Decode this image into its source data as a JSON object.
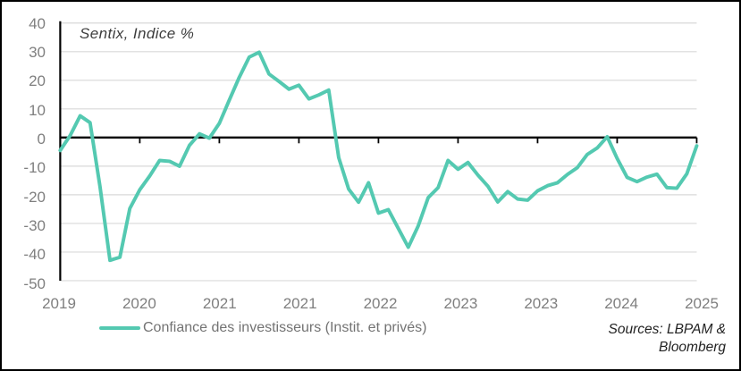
{
  "chart_data": {
    "type": "line",
    "title": "Sentix, Indice %",
    "ylabel": "",
    "xlabel": "",
    "ylim": [
      -50,
      40
    ],
    "grid": true,
    "legend_position": "bottom",
    "y_tick_labels": [
      40,
      30,
      20,
      10,
      0,
      -10,
      -20,
      -30,
      -40,
      -50
    ],
    "x_tick_labels": [
      "2019",
      "2020",
      "2021",
      "2021",
      "2022",
      "2023",
      "2023",
      "2024",
      "2025"
    ],
    "x_tick_point_indices": [
      0,
      8,
      16,
      24,
      32,
      40,
      48,
      56,
      64
    ],
    "series": [
      {
        "name": "Confiance des investisseurs (Instit. et privés)",
        "color": "#54C9B1",
        "values": [
          -4.5,
          0.7,
          7.6,
          5.2,
          -17.1,
          -42.9,
          -41.8,
          -24.8,
          -18.2,
          -13.4,
          -8.0,
          -8.3,
          -10.0,
          -2.7,
          1.3,
          -0.2,
          5.0,
          13.1,
          21.0,
          28.1,
          29.8,
          22.2,
          19.6,
          16.9,
          18.3,
          13.5,
          14.9,
          16.6,
          -7.0,
          -18.0,
          -22.6,
          -15.8,
          -26.4,
          -25.2,
          -31.8,
          -38.3,
          -30.9,
          -21.0,
          -17.5,
          -8.0,
          -11.1,
          -8.7,
          -13.1,
          -17.0,
          -22.5,
          -18.9,
          -21.5,
          -21.9,
          -18.6,
          -16.8,
          -15.8,
          -12.9,
          -10.5,
          -5.9,
          -3.6,
          0.3,
          -7.3,
          -13.9,
          -15.4,
          -13.8,
          -12.8,
          -17.5,
          -17.7,
          -12.7,
          -2.9
        ]
      }
    ],
    "source_note": [
      "Sources: LBPAM &",
      "Bloomberg"
    ]
  },
  "colors": {
    "background": "#FFFFFF",
    "frame_border": "#000000",
    "gridline": "#D9D9D9",
    "axis_line": "#000000",
    "tick_label": "#7F7F7F",
    "legend_text": "#737373",
    "title_text": "#3D3D3D",
    "source_text": "#222222"
  }
}
